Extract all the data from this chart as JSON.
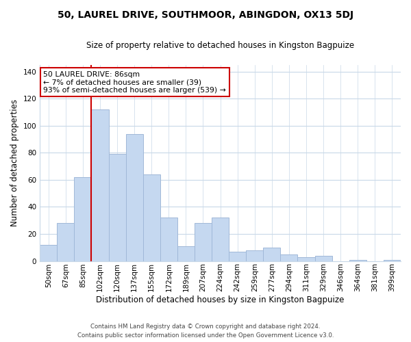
{
  "title": "50, LAUREL DRIVE, SOUTHMOOR, ABINGDON, OX13 5DJ",
  "subtitle": "Size of property relative to detached houses in Kingston Bagpuize",
  "xlabel": "Distribution of detached houses by size in Kingston Bagpuize",
  "ylabel": "Number of detached properties",
  "bar_labels": [
    "50sqm",
    "67sqm",
    "85sqm",
    "102sqm",
    "120sqm",
    "137sqm",
    "155sqm",
    "172sqm",
    "189sqm",
    "207sqm",
    "224sqm",
    "242sqm",
    "259sqm",
    "277sqm",
    "294sqm",
    "311sqm",
    "329sqm",
    "346sqm",
    "364sqm",
    "381sqm",
    "399sqm"
  ],
  "bar_values": [
    12,
    28,
    62,
    112,
    79,
    94,
    64,
    32,
    11,
    28,
    32,
    7,
    8,
    10,
    5,
    3,
    4,
    0,
    1,
    0,
    1
  ],
  "bar_color": "#c5d8f0",
  "bar_edge_color": "#a0b8d8",
  "vline_index": 2,
  "vline_color": "#cc0000",
  "ylim": [
    0,
    145
  ],
  "yticks": [
    0,
    20,
    40,
    60,
    80,
    100,
    120,
    140
  ],
  "annotation_title": "50 LAUREL DRIVE: 86sqm",
  "annotation_line1": "← 7% of detached houses are smaller (39)",
  "annotation_line2": "93% of semi-detached houses are larger (539) →",
  "annotation_box_color": "#ffffff",
  "annotation_box_edge": "#cc0000",
  "footer_line1": "Contains HM Land Registry data © Crown copyright and database right 2024.",
  "footer_line2": "Contains public sector information licensed under the Open Government Licence v3.0.",
  "bg_color": "#ffffff",
  "grid_color": "#c8d8e8",
  "title_fontsize": 10,
  "subtitle_fontsize": 8.5,
  "xlabel_fontsize": 8.5,
  "ylabel_fontsize": 8.5,
  "tick_fontsize": 7.5,
  "ann_fontsize": 7.8,
  "footer_fontsize": 6.2
}
